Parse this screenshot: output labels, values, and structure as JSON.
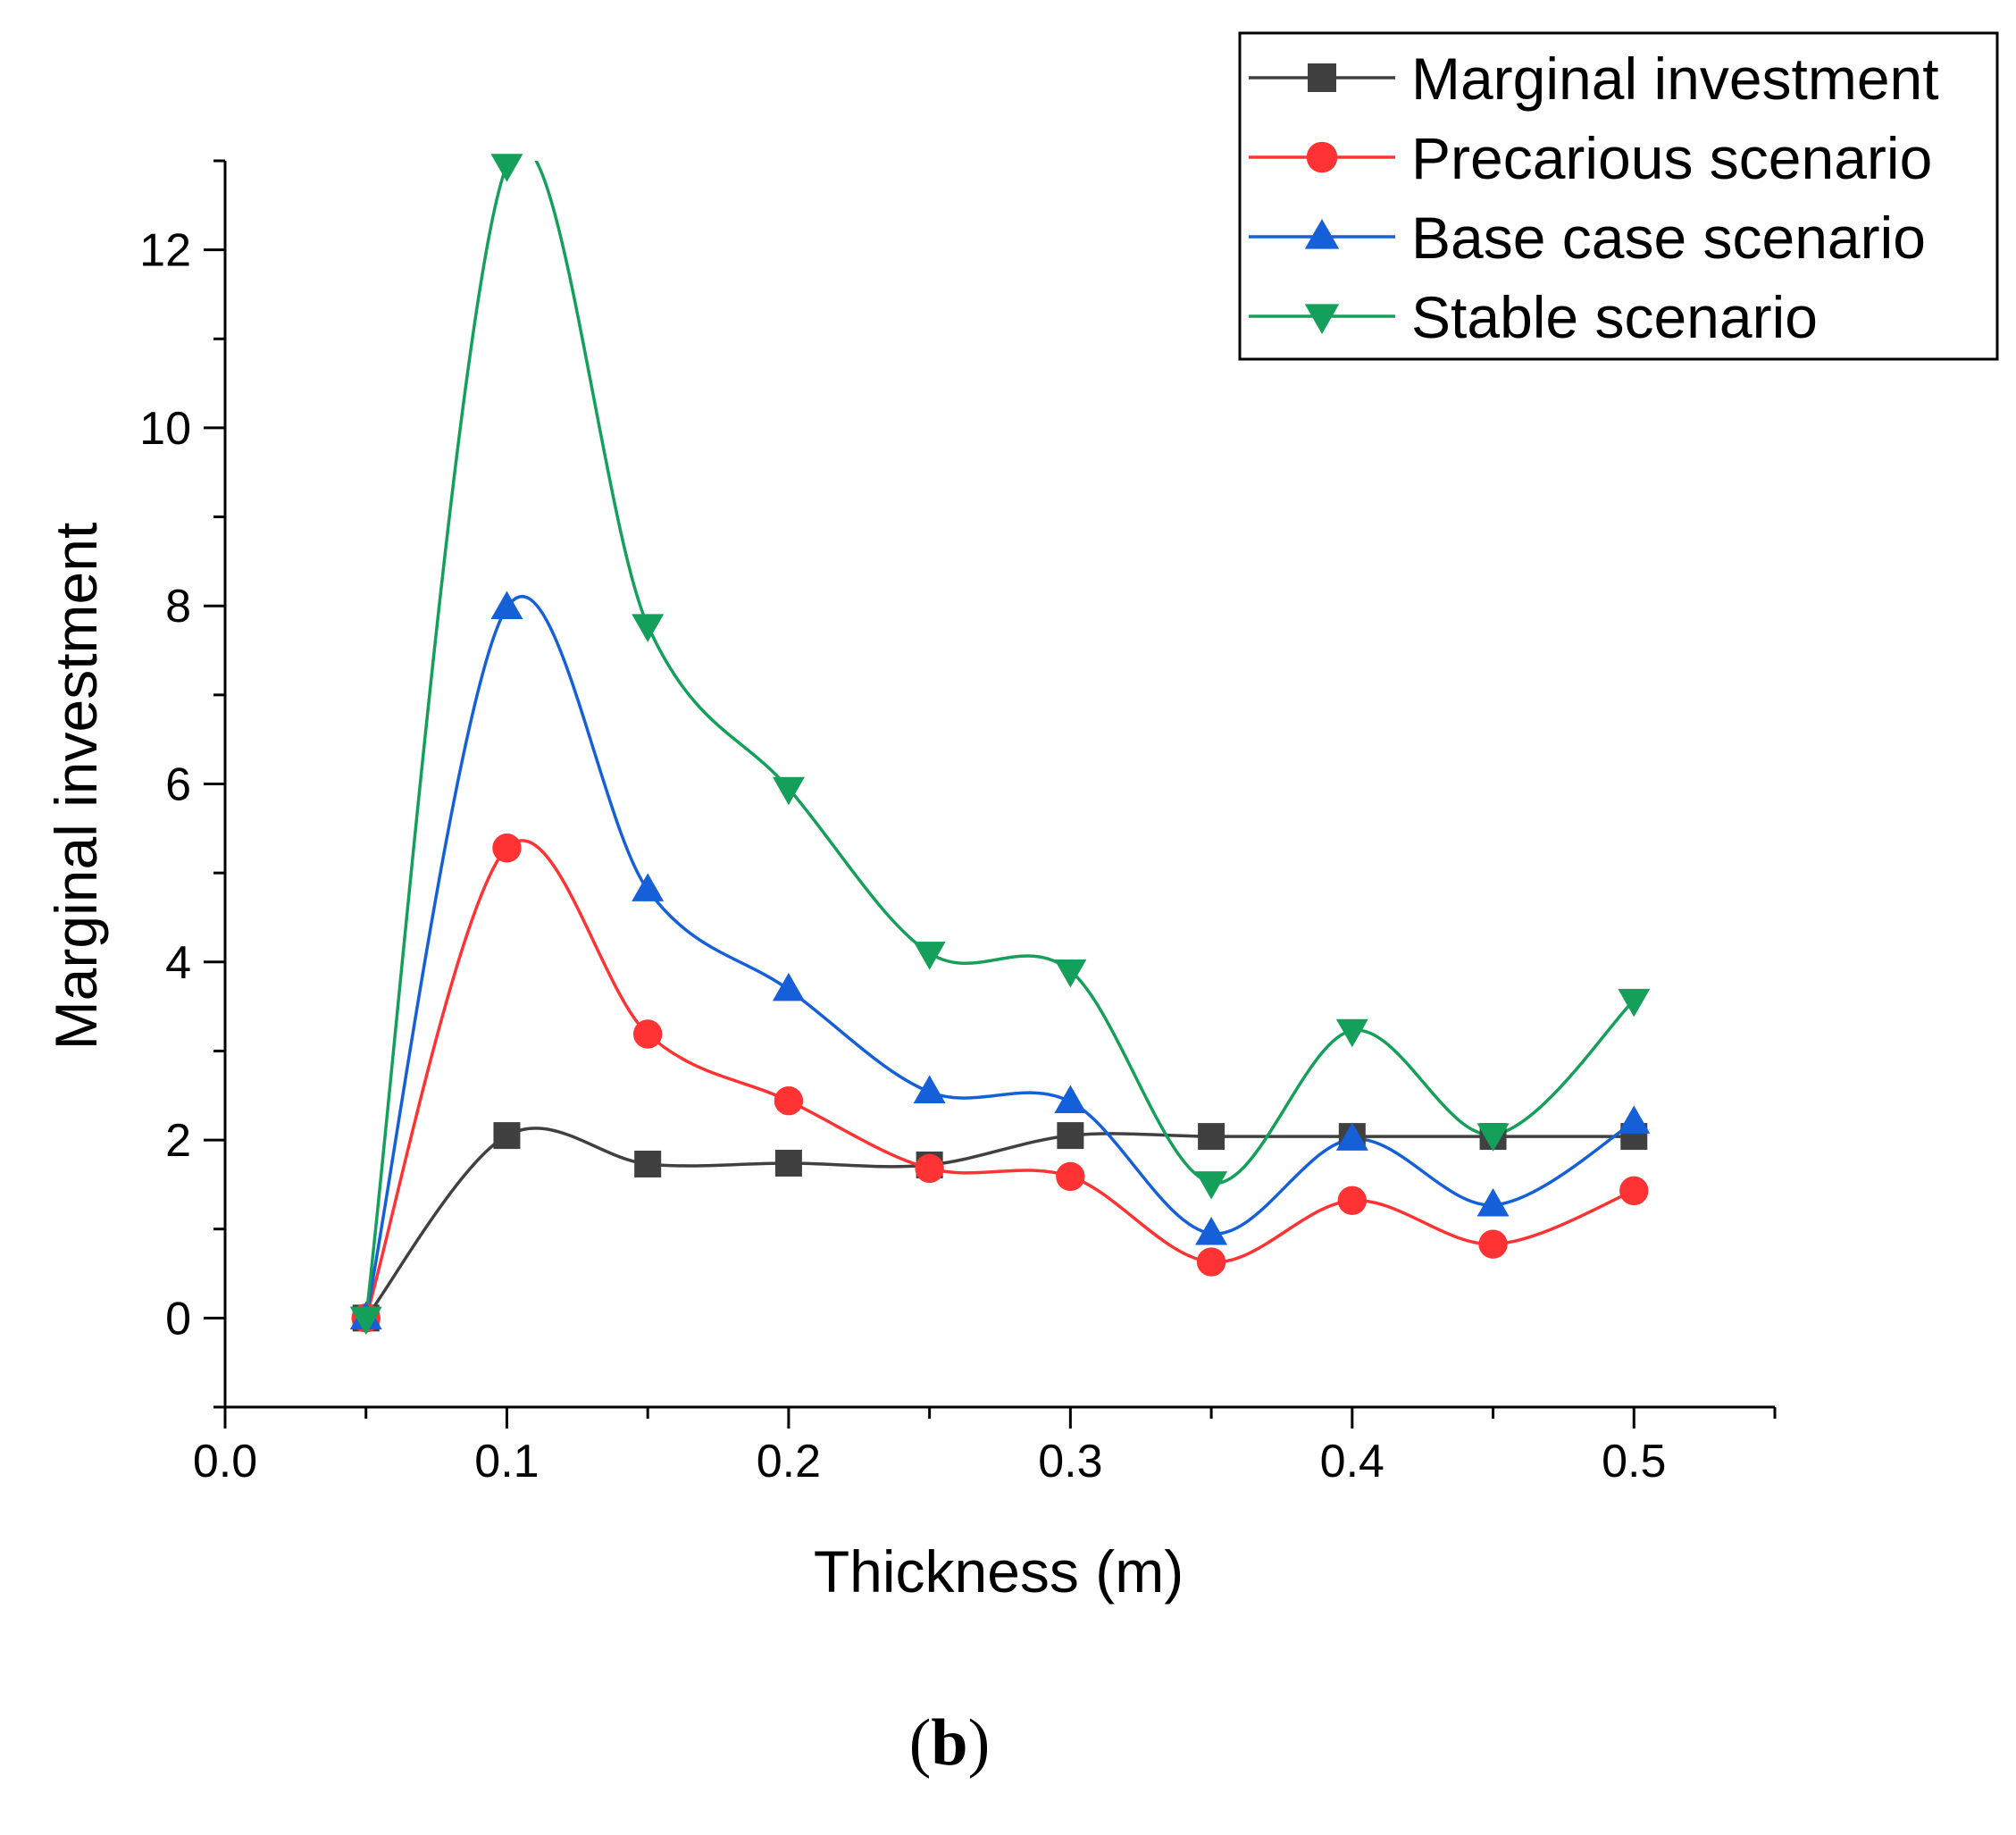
{
  "chart_data": {
    "type": "line",
    "xlabel": "Thickness (m)",
    "ylabel": "Marginal investment",
    "xlim": [
      0.0,
      0.55
    ],
    "ylim": [
      -1,
      13
    ],
    "xticks": [
      "0.0",
      "0.1",
      "0.2",
      "0.3",
      "0.4",
      "0.5"
    ],
    "yticks": [
      "0",
      "2",
      "4",
      "6",
      "8",
      "10",
      "12"
    ],
    "x": [
      0.05,
      0.1,
      0.15,
      0.2,
      0.25,
      0.3,
      0.35,
      0.4,
      0.45,
      0.5
    ],
    "series": [
      {
        "name": "Marginal investment",
        "color": "#404040",
        "marker": "square",
        "values": [
          0,
          2.05,
          1.73,
          1.74,
          1.72,
          2.05,
          2.04,
          2.04,
          2.04,
          2.04
        ]
      },
      {
        "name": "Precarious scenario",
        "color": "#ff3333",
        "marker": "circle",
        "values": [
          0,
          5.28,
          3.19,
          2.44,
          1.68,
          1.59,
          0.63,
          1.32,
          0.83,
          1.43
        ]
      },
      {
        "name": "Base case scenario",
        "color": "#1560d9",
        "marker": "triangle-up",
        "values": [
          0,
          7.98,
          4.81,
          3.69,
          2.54,
          2.43,
          0.95,
          2.01,
          1.27,
          2.2
        ]
      },
      {
        "name": "Stable scenario",
        "color": "#14a05a",
        "marker": "triangle-down",
        "values": [
          0,
          12.95,
          7.78,
          5.95,
          4.1,
          3.9,
          1.52,
          3.23,
          2.06,
          3.57
        ]
      }
    ],
    "legend": "top-right",
    "grid": false,
    "panel_label": {
      "open": "(",
      "letter": "b",
      "close": ")"
    }
  }
}
